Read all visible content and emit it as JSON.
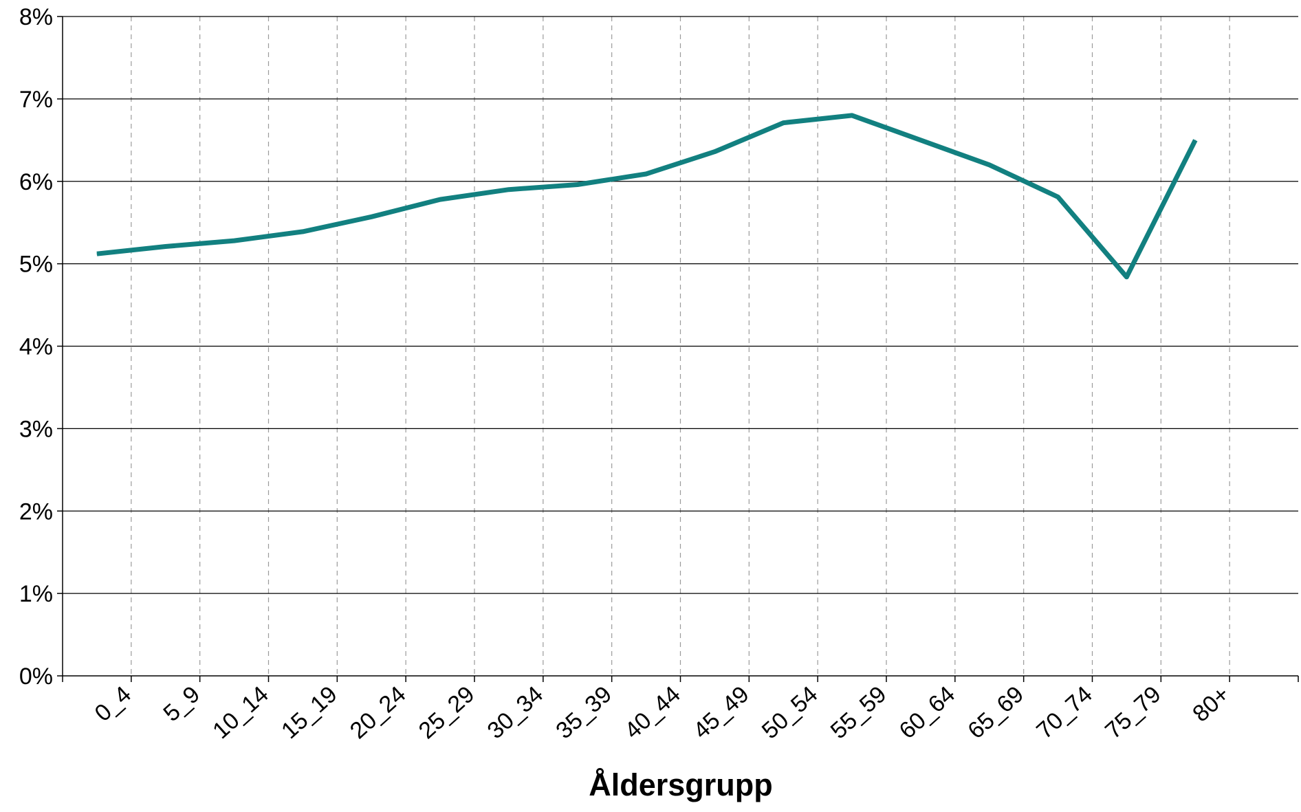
{
  "colors": {
    "series_line": "#128080",
    "gridline": "#000000",
    "vgridline": "#9a9a9a",
    "axis": "#000000",
    "text": "#000000",
    "background": "#ffffff"
  },
  "chart_data": {
    "type": "line",
    "title": "",
    "xlabel": "Åldersgrupp",
    "ylabel": "",
    "categories": [
      "0_4",
      "5_9",
      "10_14",
      "15_19",
      "20_24",
      "25_29",
      "30_34",
      "35_39",
      "40_44",
      "45_49",
      "50_54",
      "55_59",
      "60_64",
      "65_69",
      "70_74",
      "75_79",
      "80+"
    ],
    "y_ticks": [
      "0%",
      "1%",
      "2%",
      "3%",
      "4%",
      "5%",
      "6%",
      "7%",
      "8%"
    ],
    "ylim": [
      0,
      8
    ],
    "y_unit": "%",
    "horizontal_grid": "solid",
    "vertical_grid": "dashed",
    "legend": "none",
    "series": [
      {
        "values": [
          5.12,
          5.21,
          5.28,
          5.39,
          5.57,
          5.78,
          5.9,
          5.96,
          6.09,
          6.36,
          6.71,
          6.8,
          6.5,
          6.2,
          5.81,
          4.84,
          6.5
        ]
      }
    ]
  }
}
